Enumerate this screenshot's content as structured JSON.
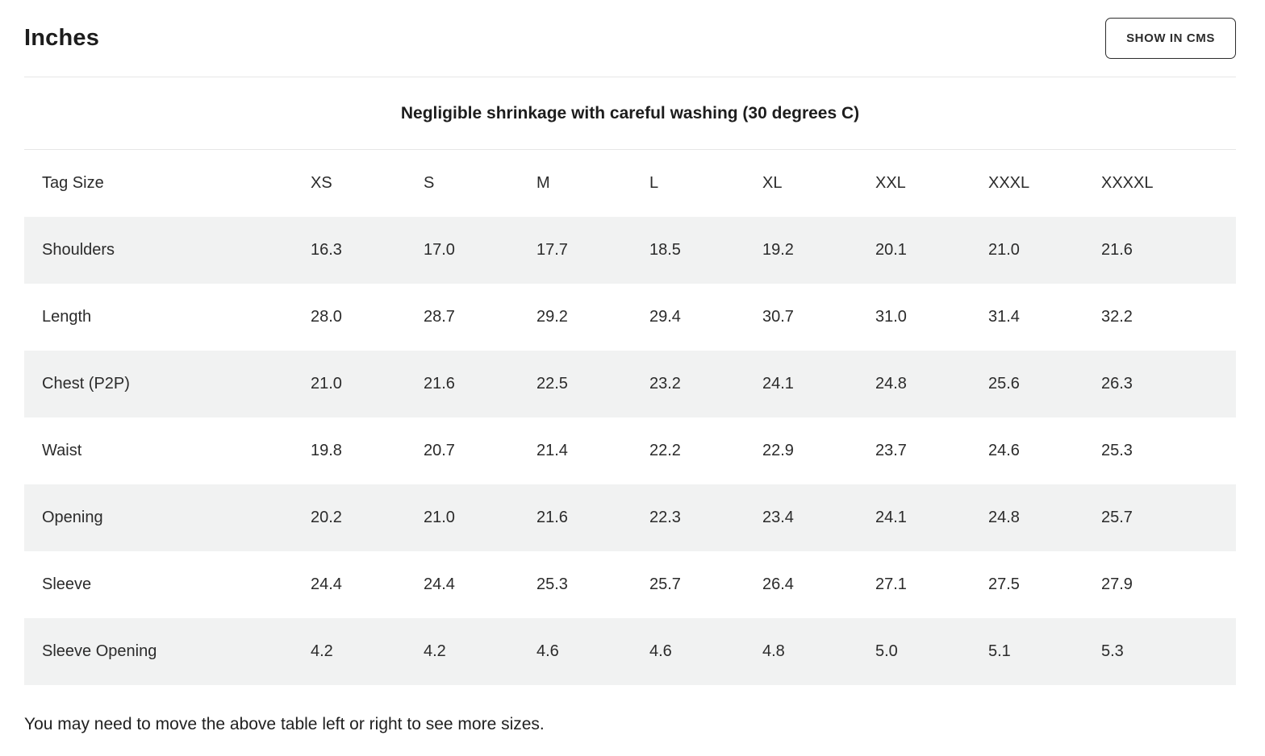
{
  "header": {
    "title": "Inches",
    "button_label": "SHOW IN CMS"
  },
  "note": "Negligible shrinkage with careful washing (30 degrees C)",
  "table": {
    "columns": [
      "Tag Size",
      "XS",
      "S",
      "M",
      "L",
      "XL",
      "XXL",
      "XXXL",
      "XXXXL"
    ],
    "rows": [
      {
        "label": "Shoulders",
        "values": [
          "16.3",
          "17.0",
          "17.7",
          "18.5",
          "19.2",
          "20.1",
          "21.0",
          "21.6"
        ]
      },
      {
        "label": "Length",
        "values": [
          "28.0",
          "28.7",
          "29.2",
          "29.4",
          "30.7",
          "31.0",
          "31.4",
          "32.2"
        ]
      },
      {
        "label": "Chest (P2P)",
        "values": [
          "21.0",
          "21.6",
          "22.5",
          "23.2",
          "24.1",
          "24.8",
          "25.6",
          "26.3"
        ]
      },
      {
        "label": "Waist",
        "values": [
          "19.8",
          "20.7",
          "21.4",
          "22.2",
          "22.9",
          "23.7",
          "24.6",
          "25.3"
        ]
      },
      {
        "label": "Opening",
        "values": [
          "20.2",
          "21.0",
          "21.6",
          "22.3",
          "23.4",
          "24.1",
          "24.8",
          "25.7"
        ]
      },
      {
        "label": "Sleeve",
        "values": [
          "24.4",
          "24.4",
          "25.3",
          "25.7",
          "26.4",
          "27.1",
          "27.5",
          "27.9"
        ]
      },
      {
        "label": "Sleeve Opening",
        "values": [
          "4.2",
          "4.2",
          "4.6",
          "4.6",
          "4.8",
          "5.0",
          "5.1",
          "5.3"
        ]
      }
    ]
  },
  "footer": {
    "hint": "You may need to move the above table left or right to see more sizes."
  },
  "colors": {
    "text": "#212121",
    "alt_row_bg": "#f1f2f2",
    "divider": "#e6e6e6",
    "button_border": "#2c2c2c"
  }
}
